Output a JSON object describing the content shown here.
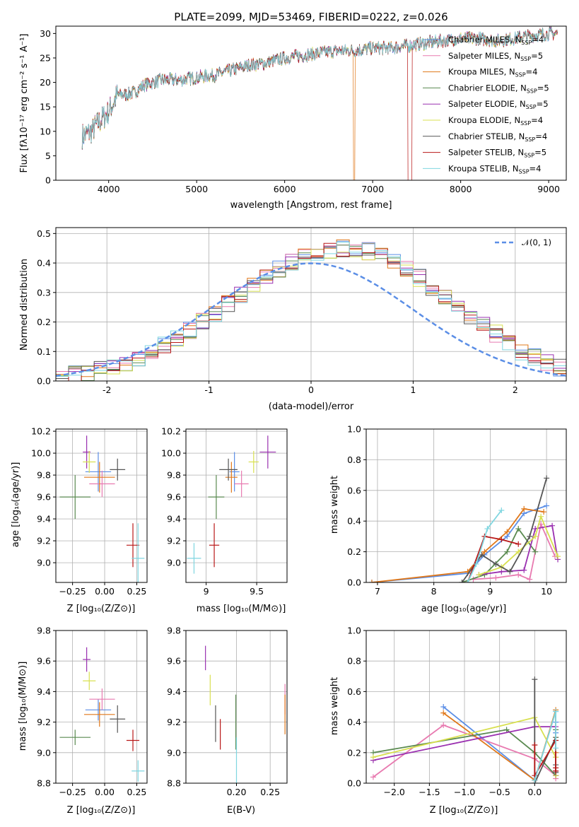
{
  "figure": {
    "title": "PLATE=2099, MJD=53469, FIBERID=0222, z=0.026",
    "spectrum": {
      "xlabel": "wavelength [Angstrom, rest frame]",
      "ylabel": "Flux [fλ10⁻¹⁷ erg cm⁻² s⁻¹ A⁻¹]"
    },
    "residuals": {
      "xlabel": "(data-model)/error",
      "ylabel": "Normed distribution",
      "legend_label": "𝒩(0, 1)"
    },
    "age_z": {
      "xlabel": "Z [log₁₀(Z/Z⊙)]",
      "ylabel": "age  [log₁₀(age/yr)]"
    },
    "age_mass": {
      "xlabel": "mass [log₁₀(M/M⊙)]"
    },
    "mw_age": {
      "xlabel": "age  [log₁₀(age/yr)]",
      "ylabel": "mass weight"
    },
    "mass_z": {
      "xlabel": "Z [log₁₀(Z/Z⊙)]",
      "ylabel": "mass [log₁₀(M/M⊙)]"
    },
    "mass_ebv": {
      "xlabel": "E(B-V)"
    },
    "mw_z": {
      "xlabel": "Z [log₁₀(Z/Z⊙)]",
      "ylabel": "mass weight"
    }
  },
  "chart_data": [
    {
      "id": "spectrum",
      "type": "line",
      "xlim": [
        3400,
        9200
      ],
      "ylim": [
        0,
        31.5
      ],
      "xticks": [
        4000,
        5000,
        6000,
        7000,
        8000,
        9000
      ],
      "yticks": [
        0,
        5,
        10,
        15,
        20,
        25,
        30
      ],
      "grid": false,
      "legend_position": "right",
      "data_x": [
        3700,
        3800,
        3900,
        4000,
        4100,
        4200,
        4300,
        4400,
        4600,
        4800,
        5000,
        5200,
        5400,
        5600,
        5800,
        6000,
        6200,
        6400,
        6600,
        6800,
        7000,
        7200,
        7400,
        7600,
        7800,
        8000,
        8200,
        8400,
        8600,
        8800,
        9000,
        9200
      ],
      "data_y": [
        9,
        10,
        12,
        14,
        17.5,
        17.5,
        18,
        19.5,
        20.5,
        20.5,
        21,
        21.5,
        22.5,
        23.5,
        24,
        25,
        25.5,
        26,
        26.5,
        26.5,
        27,
        27,
        27.5,
        28,
        28.5,
        29,
        29,
        28.5,
        29,
        29.5,
        30,
        30
      ],
      "series": [
        {
          "name": "Chabrier MILES",
          "nssp": "4",
          "color": "#5b8ee6"
        },
        {
          "name": "Salpeter MILES",
          "nssp": "5",
          "color": "#e87ab0"
        },
        {
          "name": "Kroupa MILES",
          "nssp": "4",
          "color": "#e0781a"
        },
        {
          "name": "Chabrier ELODIE",
          "nssp": "5",
          "color": "#5a8a50"
        },
        {
          "name": "Salpeter ELODIE",
          "nssp": "5",
          "color": "#9a30b0"
        },
        {
          "name": "Kroupa ELODIE",
          "nssp": "4",
          "color": "#d8e050"
        },
        {
          "name": "Chabrier STELIB",
          "nssp": "4",
          "color": "#555555"
        },
        {
          "name": "Salpeter STELIB",
          "nssp": "5",
          "color": "#b81818"
        },
        {
          "name": "Kroupa STELIB",
          "nssp": "4",
          "color": "#7fd6e0"
        }
      ],
      "line_label": "N",
      "line_label_sub": "SSP"
    },
    {
      "id": "residuals",
      "type": "line",
      "xlim": [
        -2.5,
        2.5
      ],
      "ylim": [
        0,
        0.52
      ],
      "xticks": [
        -2,
        -1,
        0,
        1,
        2
      ],
      "yticks": [
        0.0,
        0.1,
        0.2,
        0.3,
        0.4,
        0.5
      ],
      "grid": true,
      "legend_position": "top-right",
      "bin_width": 0.125,
      "bin_start": -2.5,
      "hist_values": [
        0.02,
        0.025,
        0.03,
        0.04,
        0.05,
        0.06,
        0.08,
        0.1,
        0.12,
        0.14,
        0.17,
        0.2,
        0.23,
        0.26,
        0.29,
        0.32,
        0.35,
        0.38,
        0.4,
        0.42,
        0.43,
        0.44,
        0.45,
        0.45,
        0.44,
        0.43,
        0.41,
        0.38,
        0.35,
        0.32,
        0.29,
        0.26,
        0.22,
        0.19,
        0.16,
        0.13,
        0.1,
        0.08,
        0.06,
        0.045
      ],
      "gaussian": {
        "mean": 0,
        "sigma": 1
      }
    },
    {
      "id": "age_z",
      "type": "scatter",
      "xlim": [
        -0.38,
        0.33
      ],
      "ylim": [
        8.82,
        10.22
      ],
      "xticks": [
        -0.25,
        0.0,
        0.25
      ],
      "xticklabels": [
        "−0.25",
        "0.00",
        "0.25"
      ],
      "yticks": [
        9.0,
        9.2,
        9.4,
        9.6,
        9.8,
        10.0,
        10.2
      ],
      "grid": true,
      "points": [
        {
          "x": -0.05,
          "y": 9.83,
          "xerr": 0.1,
          "yerr": 0.18,
          "color": "#5b8ee6"
        },
        {
          "x": -0.02,
          "y": 9.72,
          "xerr": 0.1,
          "yerr": 0.12,
          "color": "#e87ab0"
        },
        {
          "x": -0.04,
          "y": 9.78,
          "xerr": 0.12,
          "yerr": 0.14,
          "color": "#e0781a"
        },
        {
          "x": -0.23,
          "y": 9.6,
          "xerr": 0.12,
          "yerr": 0.2,
          "color": "#5a8a50"
        },
        {
          "x": -0.14,
          "y": 10.01,
          "xerr": 0.03,
          "yerr": 0.15,
          "color": "#9a30b0"
        },
        {
          "x": -0.12,
          "y": 9.92,
          "xerr": 0.05,
          "yerr": 0.1,
          "color": "#d8e050"
        },
        {
          "x": 0.1,
          "y": 9.85,
          "xerr": 0.06,
          "yerr": 0.1,
          "color": "#555555"
        },
        {
          "x": 0.22,
          "y": 9.16,
          "xerr": 0.05,
          "yerr": 0.2,
          "color": "#b81818"
        },
        {
          "x": 0.26,
          "y": 9.04,
          "xerr": 0.05,
          "yerr": 0.32,
          "color": "#7fd6e0"
        }
      ]
    },
    {
      "id": "age_mass",
      "type": "scatter",
      "xlim": [
        8.8,
        9.8
      ],
      "ylim": [
        8.82,
        10.22
      ],
      "xticks": [
        9.0,
        9.5
      ],
      "yticks": [
        9.0,
        9.2,
        9.4,
        9.6,
        9.8,
        10.0,
        10.2
      ],
      "grid": true,
      "points": [
        {
          "x": 9.28,
          "y": 9.83,
          "xerr": 0.05,
          "yerr": 0.18,
          "color": "#5b8ee6"
        },
        {
          "x": 9.35,
          "y": 9.72,
          "xerr": 0.07,
          "yerr": 0.12,
          "color": "#e87ab0"
        },
        {
          "x": 9.25,
          "y": 9.78,
          "xerr": 0.06,
          "yerr": 0.14,
          "color": "#e0781a"
        },
        {
          "x": 9.1,
          "y": 9.6,
          "xerr": 0.08,
          "yerr": 0.2,
          "color": "#5a8a50"
        },
        {
          "x": 9.61,
          "y": 10.01,
          "xerr": 0.08,
          "yerr": 0.15,
          "color": "#9a30b0"
        },
        {
          "x": 9.47,
          "y": 9.92,
          "xerr": 0.05,
          "yerr": 0.1,
          "color": "#d8e050"
        },
        {
          "x": 9.22,
          "y": 9.85,
          "xerr": 0.09,
          "yerr": 0.1,
          "color": "#555555"
        },
        {
          "x": 9.08,
          "y": 9.16,
          "xerr": 0.05,
          "yerr": 0.2,
          "color": "#b81818"
        },
        {
          "x": 8.88,
          "y": 9.04,
          "xerr": 0.07,
          "yerr": 0.14,
          "color": "#7fd6e0"
        }
      ]
    },
    {
      "id": "mw_age",
      "type": "line",
      "xlim": [
        6.8,
        10.35
      ],
      "ylim": [
        0,
        1.0
      ],
      "xticks": [
        7,
        8,
        9,
        10
      ],
      "yticks": [
        0.0,
        0.2,
        0.4,
        0.6,
        0.8,
        1.0
      ],
      "grid": true,
      "series": [
        {
          "color": "#5b8ee6",
          "x": [
            6.9,
            8.6,
            8.9,
            9.3,
            9.6,
            10.0
          ],
          "y": [
            0.0,
            0.06,
            0.18,
            0.3,
            0.45,
            0.5
          ]
        },
        {
          "color": "#e87ab0",
          "x": [
            8.7,
            9.1,
            9.5,
            9.7,
            9.9,
            10.15
          ],
          "y": [
            0.02,
            0.03,
            0.05,
            0.02,
            0.38,
            0.17
          ]
        },
        {
          "color": "#e0781a",
          "x": [
            6.9,
            8.6,
            8.9,
            9.3,
            9.6,
            9.95
          ],
          "y": [
            0.0,
            0.07,
            0.2,
            0.33,
            0.48,
            0.46
          ]
        },
        {
          "color": "#5a8a50",
          "x": [
            8.5,
            8.9,
            9.3,
            9.5,
            9.8
          ],
          "y": [
            0.0,
            0.05,
            0.2,
            0.35,
            0.2
          ]
        },
        {
          "color": "#9a30b0",
          "x": [
            8.8,
            9.2,
            9.6,
            9.8,
            10.1,
            10.2
          ],
          "y": [
            0.05,
            0.07,
            0.08,
            0.35,
            0.37,
            0.15
          ]
        },
        {
          "color": "#d8e050",
          "x": [
            8.8,
            9.2,
            9.5,
            9.8,
            9.9,
            10.2
          ],
          "y": [
            0.05,
            0.1,
            0.2,
            0.3,
            0.43,
            0.17
          ]
        },
        {
          "color": "#555555",
          "x": [
            8.5,
            8.85,
            9.1,
            9.35,
            9.7,
            10.0
          ],
          "y": [
            0.0,
            0.18,
            0.12,
            0.07,
            0.3,
            0.68
          ]
        },
        {
          "color": "#b81818",
          "x": [
            8.6,
            8.9,
            9.2,
            9.5
          ],
          "y": [
            0.0,
            0.3,
            0.28,
            0.25
          ]
        },
        {
          "color": "#7fd6e0",
          "x": [
            8.6,
            8.75,
            8.95,
            9.2
          ],
          "y": [
            0.0,
            0.12,
            0.35,
            0.47
          ]
        }
      ]
    },
    {
      "id": "mass_z",
      "type": "scatter",
      "xlim": [
        -0.38,
        0.33
      ],
      "ylim": [
        8.8,
        9.8
      ],
      "xticks": [
        -0.25,
        0.0,
        0.25
      ],
      "xticklabels": [
        "−0.25",
        "0.00",
        "0.25"
      ],
      "yticks": [
        8.8,
        9.0,
        9.2,
        9.4,
        9.6,
        9.8
      ],
      "grid": true,
      "points": [
        {
          "x": -0.05,
          "y": 9.28,
          "xerr": 0.1,
          "yerr": 0.07,
          "color": "#5b8ee6"
        },
        {
          "x": -0.02,
          "y": 9.35,
          "xerr": 0.1,
          "yerr": 0.07,
          "color": "#e87ab0"
        },
        {
          "x": -0.04,
          "y": 9.25,
          "xerr": 0.12,
          "yerr": 0.08,
          "color": "#e0781a"
        },
        {
          "x": -0.23,
          "y": 9.1,
          "xerr": 0.12,
          "yerr": 0.05,
          "color": "#5a8a50"
        },
        {
          "x": -0.14,
          "y": 9.61,
          "xerr": 0.03,
          "yerr": 0.08,
          "color": "#9a30b0"
        },
        {
          "x": -0.12,
          "y": 9.47,
          "xerr": 0.05,
          "yerr": 0.06,
          "color": "#d8e050"
        },
        {
          "x": 0.1,
          "y": 9.22,
          "xerr": 0.06,
          "yerr": 0.09,
          "color": "#555555"
        },
        {
          "x": 0.22,
          "y": 9.08,
          "xerr": 0.05,
          "yerr": 0.07,
          "color": "#b81818"
        },
        {
          "x": 0.26,
          "y": 8.88,
          "xerr": 0.05,
          "yerr": 0.07,
          "color": "#7fd6e0"
        }
      ]
    },
    {
      "id": "mass_ebv",
      "type": "scatter",
      "xlim": [
        0.125,
        0.275
      ],
      "ylim": [
        8.8,
        9.8
      ],
      "xticks": [
        0.2,
        0.25
      ],
      "xticklabels": [
        "0.20",
        "0.25"
      ],
      "yticks": [
        8.8,
        9.0,
        9.2,
        9.4,
        9.6,
        9.8
      ],
      "grid": true,
      "points": [
        {
          "x": 0.272,
          "y": 9.35,
          "yerr": 0.1,
          "color": "#e87ab0"
        },
        {
          "x": 0.272,
          "y": 9.25,
          "yerr": 0.13,
          "color": "#e0781a"
        },
        {
          "x": 0.199,
          "y": 9.2,
          "yerr": 0.18,
          "color": "#5a8a50"
        },
        {
          "x": 0.154,
          "y": 9.62,
          "yerr": 0.08,
          "color": "#9a30b0"
        },
        {
          "x": 0.161,
          "y": 9.41,
          "yerr": 0.1,
          "color": "#d8e050"
        },
        {
          "x": 0.169,
          "y": 9.19,
          "yerr": 0.12,
          "color": "#555555"
        },
        {
          "x": 0.176,
          "y": 9.12,
          "yerr": 0.1,
          "color": "#b81818"
        },
        {
          "x": 0.2,
          "y": 8.95,
          "yerr": 0.15,
          "color": "#7fd6e0"
        }
      ]
    },
    {
      "id": "mw_z",
      "type": "line",
      "xlim": [
        -2.4,
        0.45
      ],
      "ylim": [
        0,
        1.0
      ],
      "xticks": [
        -2.0,
        -1.5,
        -1.0,
        -0.5,
        0.0
      ],
      "xticklabels": [
        "−2.0",
        "−1.5",
        "−1.0",
        "−0.5",
        "0.0"
      ],
      "yticks": [
        0.0,
        0.2,
        0.4,
        0.6,
        0.8,
        1.0
      ],
      "grid": true,
      "series": [
        {
          "color": "#5b8ee6",
          "x": [
            -1.3,
            0.0,
            0.3,
            0.3,
            0.3
          ],
          "y": [
            0.5,
            0.02,
            0.47,
            0.4,
            0.33
          ]
        },
        {
          "color": "#e87ab0",
          "x": [
            -2.3,
            -1.3,
            0.0,
            0.3,
            0.3,
            0.3
          ],
          "y": [
            0.04,
            0.38,
            0.16,
            0.05,
            0.17,
            0.03
          ]
        },
        {
          "color": "#e0781a",
          "x": [
            -1.3,
            0.0,
            0.3,
            0.3,
            0.3
          ],
          "y": [
            0.46,
            0.02,
            0.48,
            0.2,
            0.05
          ]
        },
        {
          "color": "#5a8a50",
          "x": [
            -2.3,
            -0.4,
            0.0,
            0.3,
            0.3
          ],
          "y": [
            0.2,
            0.35,
            0.2,
            0.05,
            0.35
          ]
        },
        {
          "color": "#9a30b0",
          "x": [
            -2.3,
            0.0,
            0.3,
            0.3,
            0.3
          ],
          "y": [
            0.15,
            0.37,
            0.37,
            0.05,
            0.08
          ]
        },
        {
          "color": "#d8e050",
          "x": [
            -2.3,
            0.0,
            0.3,
            0.3,
            0.3
          ],
          "y": [
            0.17,
            0.43,
            0.17,
            0.3,
            0.05
          ]
        },
        {
          "color": "#555555",
          "x": [
            0.0,
            0.0,
            0.3,
            0.3,
            0.3
          ],
          "y": [
            0.68,
            0.0,
            0.3,
            0.12,
            0.07
          ]
        },
        {
          "color": "#b81818",
          "x": [
            0.0,
            0.0,
            0.3,
            0.3,
            0.3
          ],
          "y": [
            0.25,
            0.05,
            0.28,
            0.1,
            0.08
          ]
        },
        {
          "color": "#7fd6e0",
          "x": [
            0.0,
            0.3,
            0.3
          ],
          "y": [
            0.02,
            0.47,
            0.23
          ]
        }
      ]
    }
  ]
}
